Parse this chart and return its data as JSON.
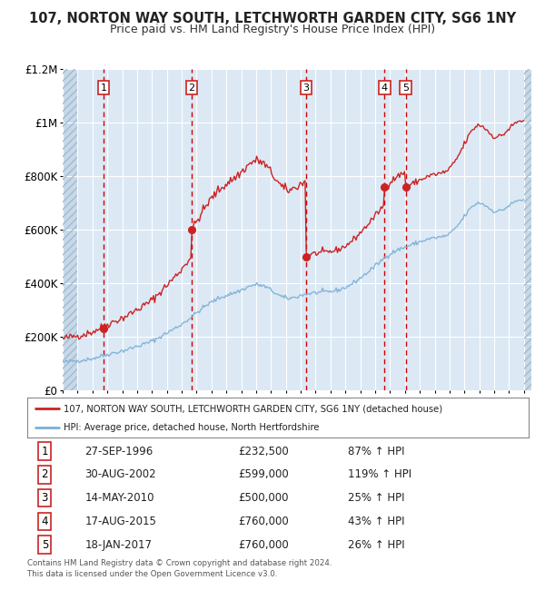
{
  "title": "107, NORTON WAY SOUTH, LETCHWORTH GARDEN CITY, SG6 1NY",
  "subtitle": "Price paid vs. HM Land Registry's House Price Index (HPI)",
  "legend_line1": "107, NORTON WAY SOUTH, LETCHWORTH GARDEN CITY, SG6 1NY (detached house)",
  "legend_line2": "HPI: Average price, detached house, North Hertfordshire",
  "footer1": "Contains HM Land Registry data © Crown copyright and database right 2024.",
  "footer2": "This data is licensed under the Open Government Licence v3.0.",
  "sales": [
    {
      "label": "1",
      "date_str": "27-SEP-1996",
      "date_num": 1996.74,
      "price": 232500,
      "pct": "87% ↑ HPI"
    },
    {
      "label": "2",
      "date_str": "30-AUG-2002",
      "date_num": 2002.66,
      "price": 599000,
      "pct": "119% ↑ HPI"
    },
    {
      "label": "3",
      "date_str": "14-MAY-2010",
      "date_num": 2010.37,
      "price": 500000,
      "pct": "25% ↑ HPI"
    },
    {
      "label": "4",
      "date_str": "17-AUG-2015",
      "date_num": 2015.63,
      "price": 760000,
      "pct": "43% ↑ HPI"
    },
    {
      "label": "5",
      "date_str": "18-JAN-2017",
      "date_num": 2017.05,
      "price": 760000,
      "pct": "26% ↑ HPI"
    }
  ],
  "ylim": [
    0,
    1200000
  ],
  "xlim": [
    1994.0,
    2025.5
  ],
  "yticks": [
    0,
    200000,
    400000,
    600000,
    800000,
    1000000,
    1200000
  ],
  "ytick_labels": [
    "£0",
    "£200K",
    "£400K",
    "£600K",
    "£800K",
    "£1M",
    "£1.2M"
  ],
  "hpi_color": "#7bafd4",
  "price_color": "#cc2222",
  "sale_dot_color": "#cc2222",
  "bg_color": "#dce9f5",
  "grid_color": "#ffffff",
  "vline_color": "#cc0000",
  "box_color": "#cc2222",
  "hpi_data": {
    "years": [
      1994,
      1995,
      1996,
      1997,
      1998,
      1999,
      2000,
      2001,
      2002,
      2003,
      2004,
      2005,
      2006,
      2007,
      2008,
      2009,
      2010,
      2011,
      2012,
      2013,
      2014,
      2015,
      2016,
      2017,
      2018,
      2019,
      2020,
      2021,
      2022,
      2023,
      2024,
      2025
    ],
    "prices": [
      105000,
      112000,
      120000,
      135000,
      148000,
      165000,
      185000,
      215000,
      248000,
      290000,
      330000,
      355000,
      375000,
      395000,
      375000,
      345000,
      355000,
      365000,
      370000,
      385000,
      420000,
      465000,
      510000,
      535000,
      555000,
      570000,
      585000,
      650000,
      700000,
      670000,
      690000,
      710000
    ]
  }
}
